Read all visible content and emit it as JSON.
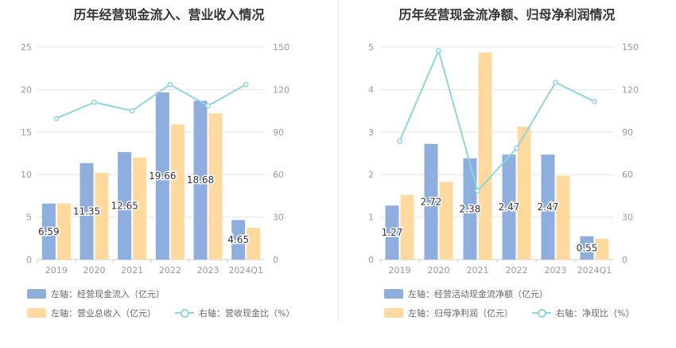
{
  "colors": {
    "bar1": "#8eaedd",
    "bar2": "#ffd99e",
    "line": "#8dd6dc",
    "grid": "#e5e5e5",
    "axis": "#999999"
  },
  "chart_data": [
    {
      "type": "bar",
      "title": "历年经营现金流入、营业收入情况",
      "categories": [
        "2019",
        "2020",
        "2021",
        "2022",
        "2023",
        "2024Q1"
      ],
      "left_axis": {
        "ticks": [
          "0",
          "5",
          "10",
          "15",
          "20",
          "25"
        ],
        "range": [
          0,
          25
        ]
      },
      "right_axis": {
        "ticks": [
          "0",
          "30",
          "60",
          "90",
          "120",
          "150"
        ],
        "range": [
          0,
          150
        ]
      },
      "series": [
        {
          "name": "左轴：经营现金流入（亿元）",
          "axis": "left",
          "kind": "bar",
          "values": [
            6.59,
            11.35,
            12.65,
            19.66,
            18.68,
            4.65
          ],
          "labels": [
            "6.59",
            "11.35",
            "12.65",
            "19.66",
            "18.68",
            "4.65"
          ]
        },
        {
          "name": "左轴：营业总收入（亿元）",
          "axis": "left",
          "kind": "bar",
          "values": [
            6.6,
            10.2,
            12.0,
            15.9,
            17.2,
            3.75
          ]
        },
        {
          "name": "右轴：营收现金比（%）",
          "axis": "right",
          "kind": "line",
          "values": [
            99.6,
            111.0,
            105.0,
            123.5,
            108.5,
            123.5
          ]
        }
      ]
    },
    {
      "type": "bar",
      "title": "历年经营现金流净额、归母净利润情况",
      "categories": [
        "2019",
        "2020",
        "2021",
        "2022",
        "2023",
        "2024Q1"
      ],
      "left_axis": {
        "ticks": [
          "0",
          "1",
          "2",
          "3",
          "4",
          "5"
        ],
        "range": [
          0,
          5
        ]
      },
      "right_axis": {
        "ticks": [
          "0",
          "30",
          "60",
          "90",
          "120",
          "150"
        ],
        "range": [
          0,
          150
        ]
      },
      "series": [
        {
          "name": "左轴：经营活动现金流净额（亿元）",
          "axis": "left",
          "kind": "bar",
          "values": [
            1.27,
            2.72,
            2.38,
            2.47,
            2.47,
            0.55
          ],
          "labels": [
            "1.27",
            "2.72",
            "2.38",
            "2.47",
            "2.47",
            "0.55"
          ]
        },
        {
          "name": "左轴：归母净利润（亿元）",
          "axis": "left",
          "kind": "bar",
          "values": [
            1.52,
            1.83,
            4.87,
            3.13,
            1.97,
            0.49
          ]
        },
        {
          "name": "右轴：净现比（%）",
          "axis": "right",
          "kind": "line",
          "values": [
            83.5,
            147.5,
            48.5,
            78.5,
            125.0,
            111.5
          ]
        }
      ]
    }
  ]
}
